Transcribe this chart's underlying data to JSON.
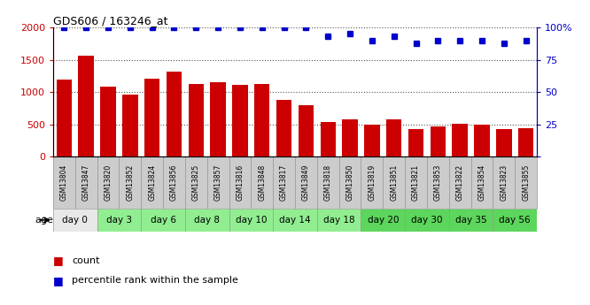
{
  "title": "GDS606 / 163246_at",
  "samples": [
    "GSM13804",
    "GSM13847",
    "GSM13820",
    "GSM13852",
    "GSM13824",
    "GSM13856",
    "GSM13825",
    "GSM13857",
    "GSM13816",
    "GSM13848",
    "GSM13817",
    "GSM13849",
    "GSM13818",
    "GSM13850",
    "GSM13819",
    "GSM13851",
    "GSM13821",
    "GSM13853",
    "GSM13822",
    "GSM13854",
    "GSM13823",
    "GSM13855"
  ],
  "counts": [
    1200,
    1560,
    1080,
    960,
    1210,
    1310,
    1130,
    1150,
    1110,
    1130,
    880,
    800,
    530,
    580,
    500,
    580,
    430,
    470,
    510,
    490,
    430,
    440
  ],
  "percentile": [
    100,
    100,
    100,
    100,
    100,
    100,
    100,
    100,
    100,
    100,
    100,
    100,
    93,
    95,
    90,
    93,
    88,
    90,
    90,
    90,
    88,
    90
  ],
  "age_groups": [
    {
      "label": "day 0",
      "indices": [
        0,
        1
      ],
      "color": "#e8e8e8"
    },
    {
      "label": "day 3",
      "indices": [
        2,
        3
      ],
      "color": "#90ee90"
    },
    {
      "label": "day 6",
      "indices": [
        4,
        5
      ],
      "color": "#90ee90"
    },
    {
      "label": "day 8",
      "indices": [
        6,
        7
      ],
      "color": "#90ee90"
    },
    {
      "label": "day 10",
      "indices": [
        8,
        9
      ],
      "color": "#90ee90"
    },
    {
      "label": "day 14",
      "indices": [
        10,
        11
      ],
      "color": "#90ee90"
    },
    {
      "label": "day 18",
      "indices": [
        12,
        13
      ],
      "color": "#90ee90"
    },
    {
      "label": "day 20",
      "indices": [
        14,
        15
      ],
      "color": "#5cd65c"
    },
    {
      "label": "day 30",
      "indices": [
        16,
        17
      ],
      "color": "#5cd65c"
    },
    {
      "label": "day 35",
      "indices": [
        18,
        19
      ],
      "color": "#5cd65c"
    },
    {
      "label": "day 56",
      "indices": [
        20,
        21
      ],
      "color": "#5cd65c"
    }
  ],
  "bar_color": "#cc0000",
  "dot_color": "#0000cc",
  "ylim_left": [
    0,
    2000
  ],
  "ylim_right": [
    0,
    100
  ],
  "yticks_left": [
    0,
    500,
    1000,
    1500,
    2000
  ],
  "yticks_right": [
    0,
    25,
    50,
    75,
    100
  ],
  "background_color": "#ffffff",
  "grid_color": "#000000",
  "sample_bg_color": "#cccccc",
  "border_color": "#999999"
}
